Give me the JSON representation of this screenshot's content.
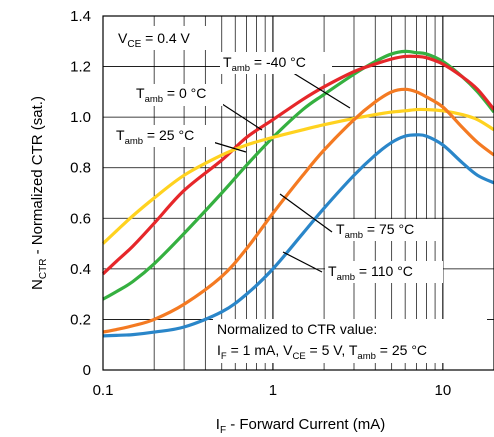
{
  "chart_data": {
    "type": "line",
    "xlabel": {
      "main": "I",
      "sub": "F",
      "rest": " - Forward Current (mA)"
    },
    "ylabel": {
      "main": "N",
      "sub": "CTR",
      "rest": " - Normalized CTR (sat.)"
    },
    "x_scale": "log",
    "xlim": [
      0.1,
      20
    ],
    "ylim": [
      0,
      1.4
    ],
    "x_ticks": [
      {
        "value": 0.1,
        "label": "0.1"
      },
      {
        "value": 1,
        "label": "1"
      },
      {
        "value": 10,
        "label": "10"
      }
    ],
    "y_ticks": [
      {
        "value": 0,
        "label": "0"
      },
      {
        "value": 0.2,
        "label": "0.2"
      },
      {
        "value": 0.4,
        "label": "0.4"
      },
      {
        "value": 0.6,
        "label": "0.6"
      },
      {
        "value": 0.8,
        "label": "0.8"
      },
      {
        "value": 1.0,
        "label": "1.0"
      },
      {
        "value": 1.2,
        "label": "1.2"
      },
      {
        "value": 1.4,
        "label": "1.4"
      }
    ],
    "grid": true,
    "condition": {
      "main": "V",
      "sub": "CE",
      "rest": " = 0.4 V"
    },
    "note": {
      "line1": "Normalized to CTR value:",
      "line2": [
        {
          "t": "I"
        },
        {
          "t": "F",
          "sub": true
        },
        {
          "t": " = 1 mA, V"
        },
        {
          "t": "CE",
          "sub": true
        },
        {
          "t": " = 5 V, T"
        },
        {
          "t": "amb",
          "sub": true
        },
        {
          "t": " = 25 °C"
        }
      ]
    },
    "series": [
      {
        "name": {
          "main": "T",
          "sub": "amb",
          "rest": " = -40 °C"
        },
        "color": "#35b040",
        "x": [
          0.1,
          0.12,
          0.15,
          0.2,
          0.3,
          0.5,
          0.7,
          1,
          1.5,
          2,
          3,
          4,
          5,
          6,
          7,
          8,
          10,
          13,
          16,
          20
        ],
        "y": [
          0.28,
          0.31,
          0.35,
          0.42,
          0.54,
          0.7,
          0.81,
          0.92,
          1.03,
          1.09,
          1.17,
          1.22,
          1.25,
          1.26,
          1.255,
          1.25,
          1.22,
          1.16,
          1.1,
          1.02
        ]
      },
      {
        "name": {
          "main": "T",
          "sub": "amb",
          "rest": " = 0 °C"
        },
        "color": "#e6272a",
        "x": [
          0.1,
          0.12,
          0.15,
          0.2,
          0.3,
          0.5,
          0.7,
          1,
          1.5,
          2,
          3,
          4,
          5,
          6,
          7,
          8,
          10,
          13,
          16,
          20
        ],
        "y": [
          0.38,
          0.43,
          0.49,
          0.58,
          0.71,
          0.83,
          0.92,
          0.99,
          1.07,
          1.12,
          1.18,
          1.21,
          1.23,
          1.24,
          1.24,
          1.235,
          1.21,
          1.16,
          1.11,
          1.03
        ]
      },
      {
        "name": {
          "main": "T",
          "sub": "amb",
          "rest": " = 25 °C"
        },
        "color": "#ffd21f",
        "x": [
          0.1,
          0.12,
          0.15,
          0.2,
          0.3,
          0.5,
          0.7,
          1,
          1.5,
          2,
          3,
          4,
          5,
          6,
          7,
          8,
          10,
          13,
          16,
          20
        ],
        "y": [
          0.5,
          0.55,
          0.61,
          0.68,
          0.77,
          0.85,
          0.89,
          0.92,
          0.95,
          0.97,
          0.995,
          1.01,
          1.02,
          1.025,
          1.03,
          1.03,
          1.025,
          1.01,
          0.99,
          0.95
        ]
      },
      {
        "name": {
          "main": "T",
          "sub": "amb",
          "rest": " = 75 °C"
        },
        "color": "#f47a22",
        "x": [
          0.1,
          0.12,
          0.15,
          0.2,
          0.3,
          0.5,
          0.7,
          1,
          1.5,
          2,
          3,
          4,
          5,
          6,
          7,
          8,
          10,
          13,
          16,
          20
        ],
        "y": [
          0.15,
          0.16,
          0.175,
          0.2,
          0.26,
          0.37,
          0.48,
          0.62,
          0.77,
          0.87,
          0.99,
          1.06,
          1.1,
          1.11,
          1.1,
          1.08,
          1.04,
          0.96,
          0.9,
          0.85
        ]
      },
      {
        "name": {
          "main": "T",
          "sub": "amb",
          "rest": " = 110 °C"
        },
        "color": "#2a86c9",
        "x": [
          0.1,
          0.12,
          0.15,
          0.2,
          0.3,
          0.5,
          0.7,
          1,
          1.5,
          2,
          3,
          4,
          5,
          6,
          7,
          8,
          10,
          13,
          16,
          20
        ],
        "y": [
          0.135,
          0.137,
          0.14,
          0.15,
          0.17,
          0.23,
          0.3,
          0.4,
          0.54,
          0.64,
          0.77,
          0.85,
          0.9,
          0.925,
          0.93,
          0.925,
          0.89,
          0.82,
          0.77,
          0.74
        ]
      }
    ]
  }
}
